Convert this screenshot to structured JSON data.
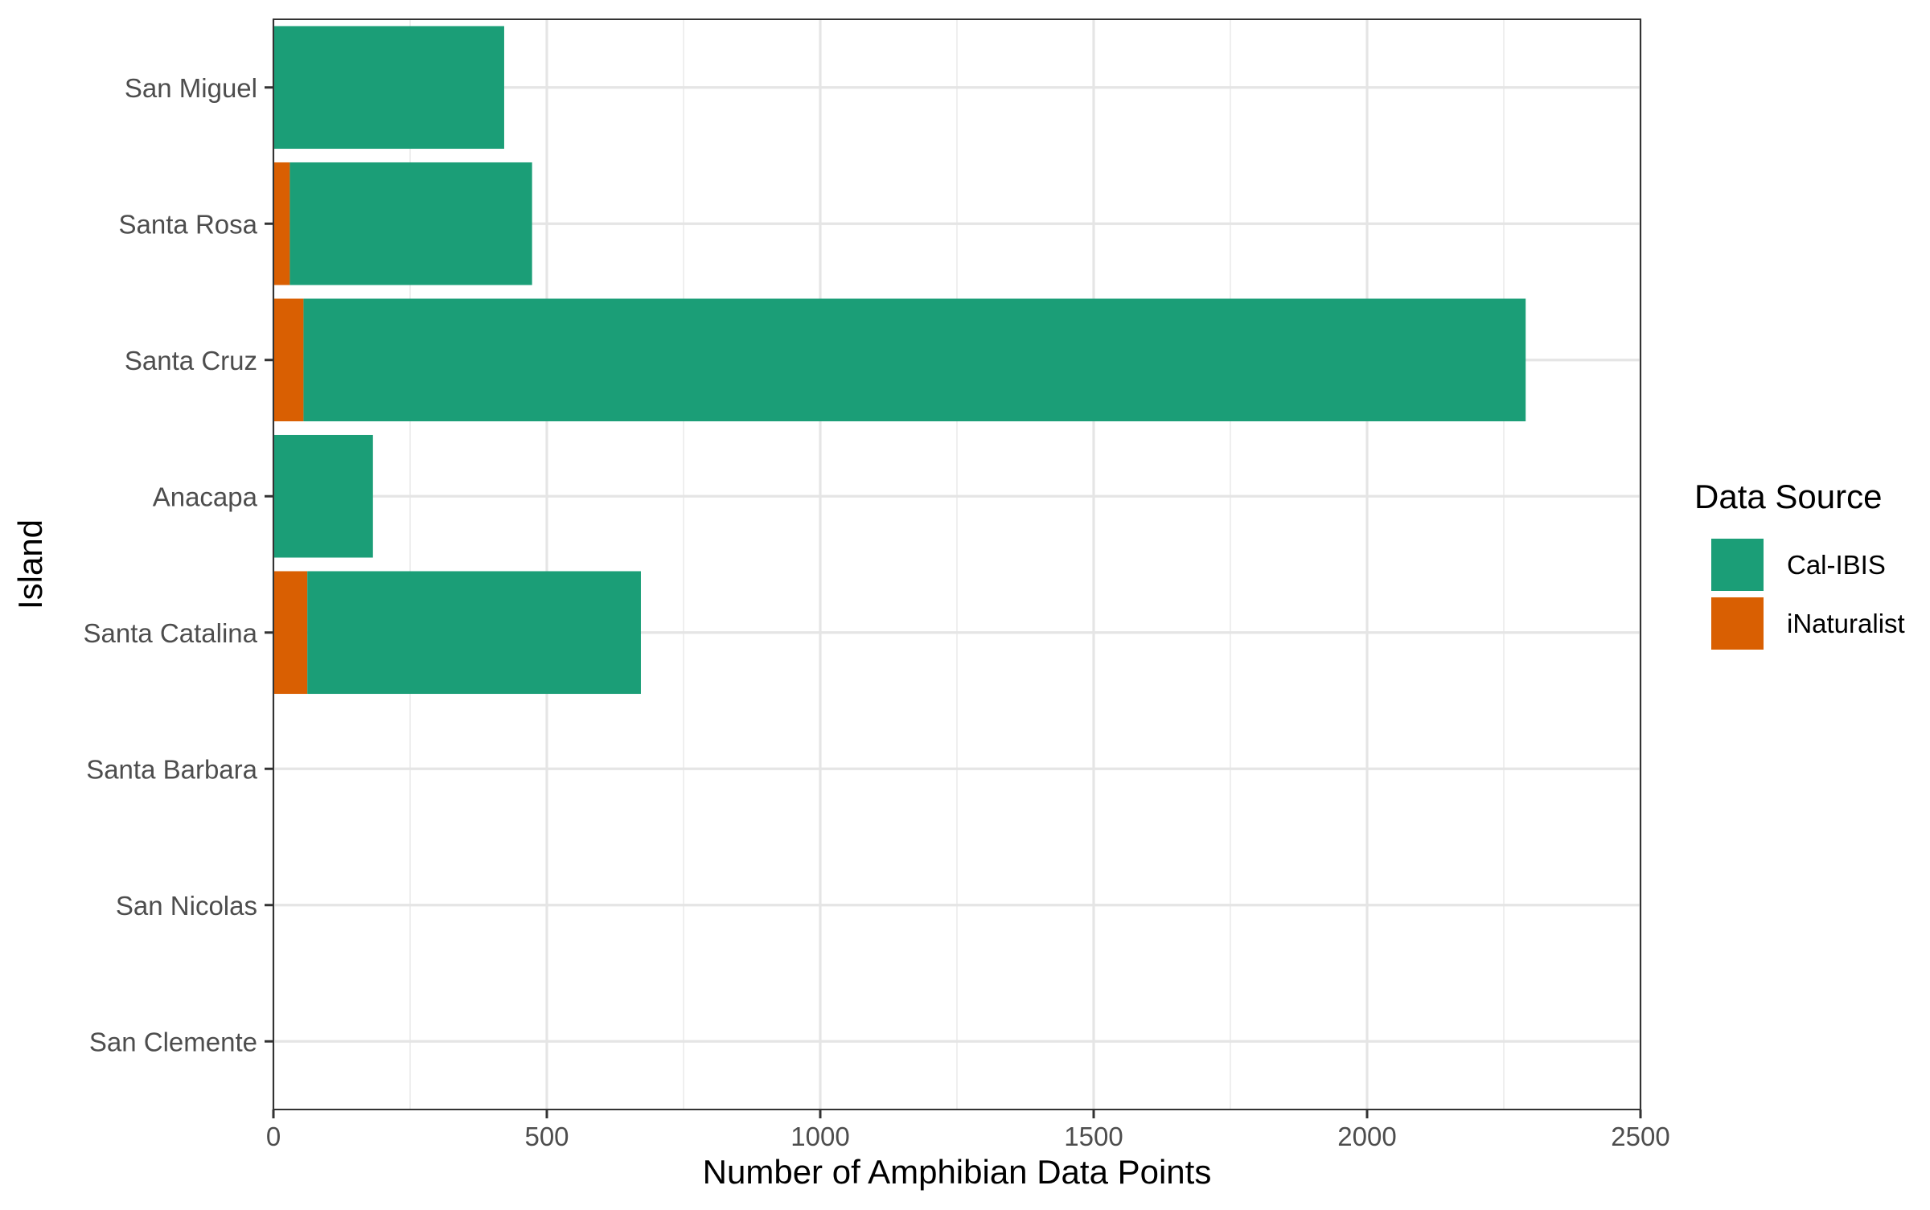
{
  "chart_data": {
    "type": "bar",
    "orientation": "horizontal",
    "stacked": true,
    "title": "",
    "xlabel": "Number of Amphibian Data Points",
    "ylabel": "Island",
    "xlim": [
      0,
      2500
    ],
    "x_ticks": [
      0,
      500,
      1000,
      1500,
      2000,
      2500
    ],
    "x_tick_labels": [
      "0",
      "500",
      "1000",
      "1500",
      "2000",
      "2500"
    ],
    "grid": true,
    "legend_position": "right",
    "categories": [
      "San Miguel",
      "Santa Rosa",
      "Santa Cruz",
      "Anacapa",
      "Santa Catalina",
      "Santa Barbara",
      "San Nicolas",
      "San Clemente"
    ],
    "series": [
      {
        "name": "iNaturalist",
        "color": "#D95F02",
        "values": [
          0,
          30,
          55,
          0,
          62,
          0,
          0,
          0
        ]
      },
      {
        "name": "Cal-IBIS",
        "color": "#1B9E77",
        "values": [
          422,
          443,
          2235,
          182,
          610,
          0,
          0,
          0
        ]
      }
    ],
    "legend": {
      "title": "Data Source",
      "entries": [
        {
          "label": "Cal-IBIS",
          "color": "#1B9E77"
        },
        {
          "label": "iNaturalist",
          "color": "#D95F02"
        }
      ]
    }
  }
}
